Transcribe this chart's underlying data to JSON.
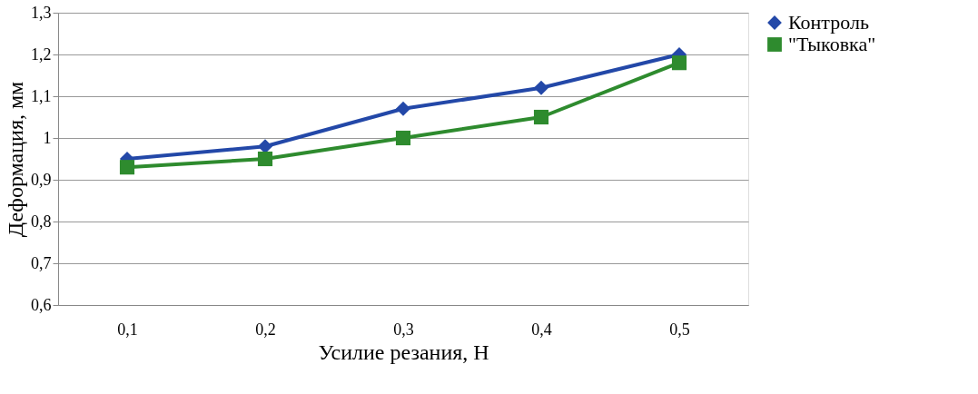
{
  "chart_data": {
    "type": "line",
    "xlabel": "Усилие резания, Н",
    "ylabel": "Деформация, мм",
    "categories": [
      "0,1",
      "0,2",
      "0,3",
      "0,4",
      "0,5"
    ],
    "series": [
      {
        "name": "Контроль",
        "color": "#2348a8",
        "marker": "diamond",
        "values": [
          0.95,
          0.98,
          1.07,
          1.12,
          1.2
        ]
      },
      {
        "name": "\"Тыковка\"",
        "color": "#2e8b2e",
        "marker": "square",
        "values": [
          0.93,
          0.95,
          1.0,
          1.05,
          1.18
        ]
      }
    ],
    "ylim": [
      0.6,
      1.3
    ],
    "yticks": [
      {
        "value": 0.6,
        "label": "0,6"
      },
      {
        "value": 0.7,
        "label": "0,7"
      },
      {
        "value": 0.8,
        "label": "0,8"
      },
      {
        "value": 0.9,
        "label": "0,9"
      },
      1,
      {
        "value": 1.1,
        "label": "1,1"
      },
      {
        "value": 1.2,
        "label": "1,2"
      },
      {
        "value": 1.3,
        "label": "1,3"
      }
    ],
    "grid": "y",
    "legend": "right",
    "line_style": "solid"
  }
}
